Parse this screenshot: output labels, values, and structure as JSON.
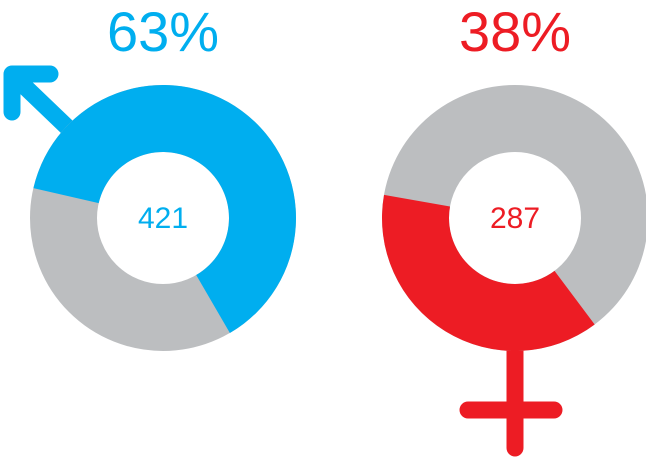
{
  "chart_data": [
    {
      "type": "donut",
      "values": [
        63
      ],
      "value_labels": [
        "63%"
      ],
      "center_label": "421",
      "color": "#00aeef",
      "track_color": "#bcbec0"
    },
    {
      "type": "donut",
      "values": [
        38
      ],
      "value_labels": [
        "38%"
      ],
      "center_label": "287",
      "color": "#ed1c24",
      "track_color": "#bcbec0"
    }
  ]
}
